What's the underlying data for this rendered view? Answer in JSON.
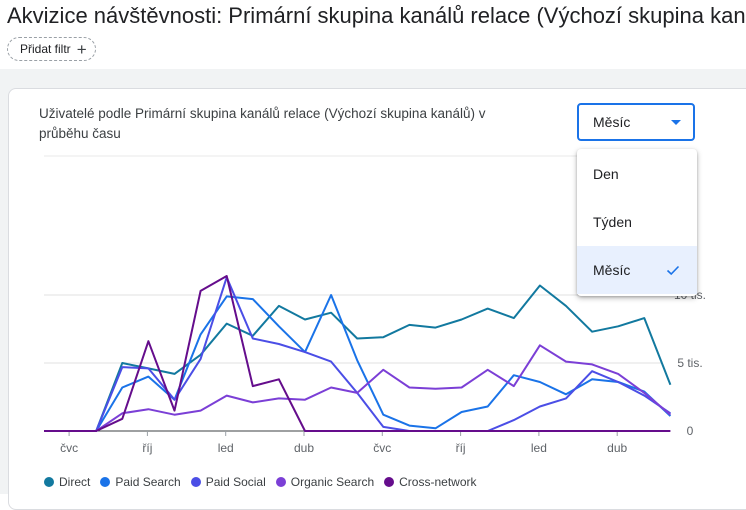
{
  "header": {
    "title": "Akvizice návštěvnosti: Primární skupina kanálů relace (Výchozí skupina kanálů)",
    "add_filter_label": "Přidat filtr"
  },
  "card": {
    "title": "Uživatelé podle Primární skupina kanálů relace (Výchozí skupina kanálů) v průběhu času"
  },
  "granularity_select": {
    "value": "Měsíc",
    "options": [
      {
        "label": "Den",
        "selected": false
      },
      {
        "label": "Týden",
        "selected": false
      },
      {
        "label": "Měsíc",
        "selected": true
      }
    ]
  },
  "chart_data": {
    "type": "line",
    "title": "Uživatelé podle Primární skupina kanálů relace (Výchozí skupina kanálů) v průběhu času",
    "x_tick_labels": [
      "čvc",
      "říj",
      "led",
      "dub",
      "čvc",
      "říj",
      "led",
      "dub"
    ],
    "y_tick_labels": [
      "0",
      "5 tis.",
      "10 tis."
    ],
    "ylim": [
      0,
      10000
    ],
    "x_count": 25,
    "series": [
      {
        "name": "Direct",
        "color": "#12799f",
        "values": [
          0,
          0,
          0,
          5000,
          4600,
          4200,
          5600,
          7900,
          7000,
          9200,
          8200,
          8700,
          6800,
          6900,
          7800,
          7600,
          8200,
          9000,
          8300,
          10700,
          9200,
          7300,
          7700,
          8300,
          3400
        ]
      },
      {
        "name": "Paid Search",
        "color": "#1a73e8",
        "values": [
          0,
          0,
          0,
          3200,
          4000,
          2300,
          7100,
          9900,
          9700,
          7700,
          5800,
          10000,
          5200,
          1200,
          400,
          200,
          1400,
          1800,
          4100,
          3600,
          2700,
          3800,
          3600,
          2900,
          1100
        ]
      },
      {
        "name": "Paid Social",
        "color": "#4b4ee6",
        "values": [
          0,
          0,
          0,
          4700,
          4600,
          2300,
          5300,
          11300,
          6800,
          6400,
          5800,
          5100,
          2800,
          300,
          0,
          0,
          0,
          0,
          800,
          1800,
          2400,
          4400,
          3600,
          2600,
          1300
        ]
      },
      {
        "name": "Organic Search",
        "color": "#7b3fd6",
        "values": [
          0,
          0,
          0,
          1300,
          1600,
          1200,
          1500,
          2600,
          2100,
          2400,
          2300,
          3200,
          2800,
          4500,
          3200,
          3100,
          3200,
          4500,
          3300,
          6300,
          5100,
          4900,
          4200,
          2800,
          1200
        ]
      },
      {
        "name": "Cross-network",
        "color": "#650d8c",
        "values": [
          0,
          0,
          0,
          900,
          6600,
          1500,
          10300,
          11400,
          3300,
          3800,
          0,
          0,
          0,
          0,
          0,
          0,
          0,
          0,
          0,
          0,
          0,
          0,
          0,
          0,
          0
        ]
      }
    ]
  }
}
